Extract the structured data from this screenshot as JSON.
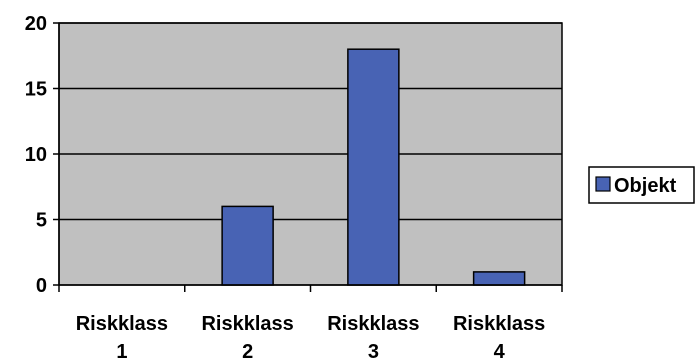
{
  "chart_data": {
    "type": "bar",
    "categories": [
      "Riskklass 1",
      "Riskklass 2",
      "Riskklass 3",
      "Riskklass 4"
    ],
    "category_lines": [
      [
        "Riskklass",
        "1"
      ],
      [
        "Riskklass",
        "2"
      ],
      [
        "Riskklass",
        "3"
      ],
      [
        "Riskklass",
        "4"
      ]
    ],
    "series": [
      {
        "name": "Objekt",
        "values": [
          0,
          6,
          18,
          1
        ]
      }
    ],
    "ylim": [
      0,
      20
    ],
    "yticks": [
      0,
      5,
      10,
      15,
      20
    ],
    "grid": true,
    "legend": "right",
    "colors": {
      "plot_background": "#c0c0c0",
      "bar_fill": "#4863b4",
      "bar_stroke": "#000000",
      "gridline": "#000000"
    }
  }
}
